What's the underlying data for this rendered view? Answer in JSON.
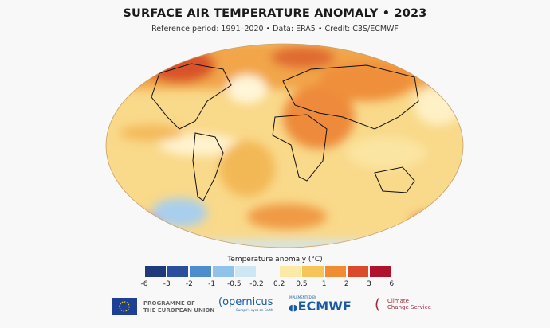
{
  "header": {
    "title": "SURFACE AIR TEMPERATURE ANOMALY • 2023",
    "subtitle": "Reference period: 1991–2020 • Data: ERA5 • Credit: C3S/ECMWF"
  },
  "map": {
    "projection": "robinson-like ellipse",
    "dominant_anomaly": "warm"
  },
  "colorbar": {
    "title": "Temperature anomaly (°C)",
    "labels": [
      "-6",
      "-3",
      "-2",
      "-1",
      "-0.5",
      "-0.2",
      "0.2",
      "0.5",
      "1",
      "2",
      "3",
      "6"
    ],
    "colors": [
      "#1f3a7a",
      "#2b4f9e",
      "#4f8bcf",
      "#8fc3ea",
      "#cfe6f5",
      "#ffffff",
      "#fbe9a6",
      "#f7c45a",
      "#f08c33",
      "#db4a2b",
      "#b0112b"
    ]
  },
  "footer": {
    "eu_text": [
      "PROGRAMME OF",
      "THE EUROPEAN UNION"
    ],
    "copernicus": "opernicus",
    "copernicus_tag": "Europe's eyes on Earth",
    "ecmwf_tag": "IMPLEMENTED BY",
    "ecmwf": "ECMWF",
    "c3s": [
      "Climate",
      "Change Service"
    ]
  }
}
